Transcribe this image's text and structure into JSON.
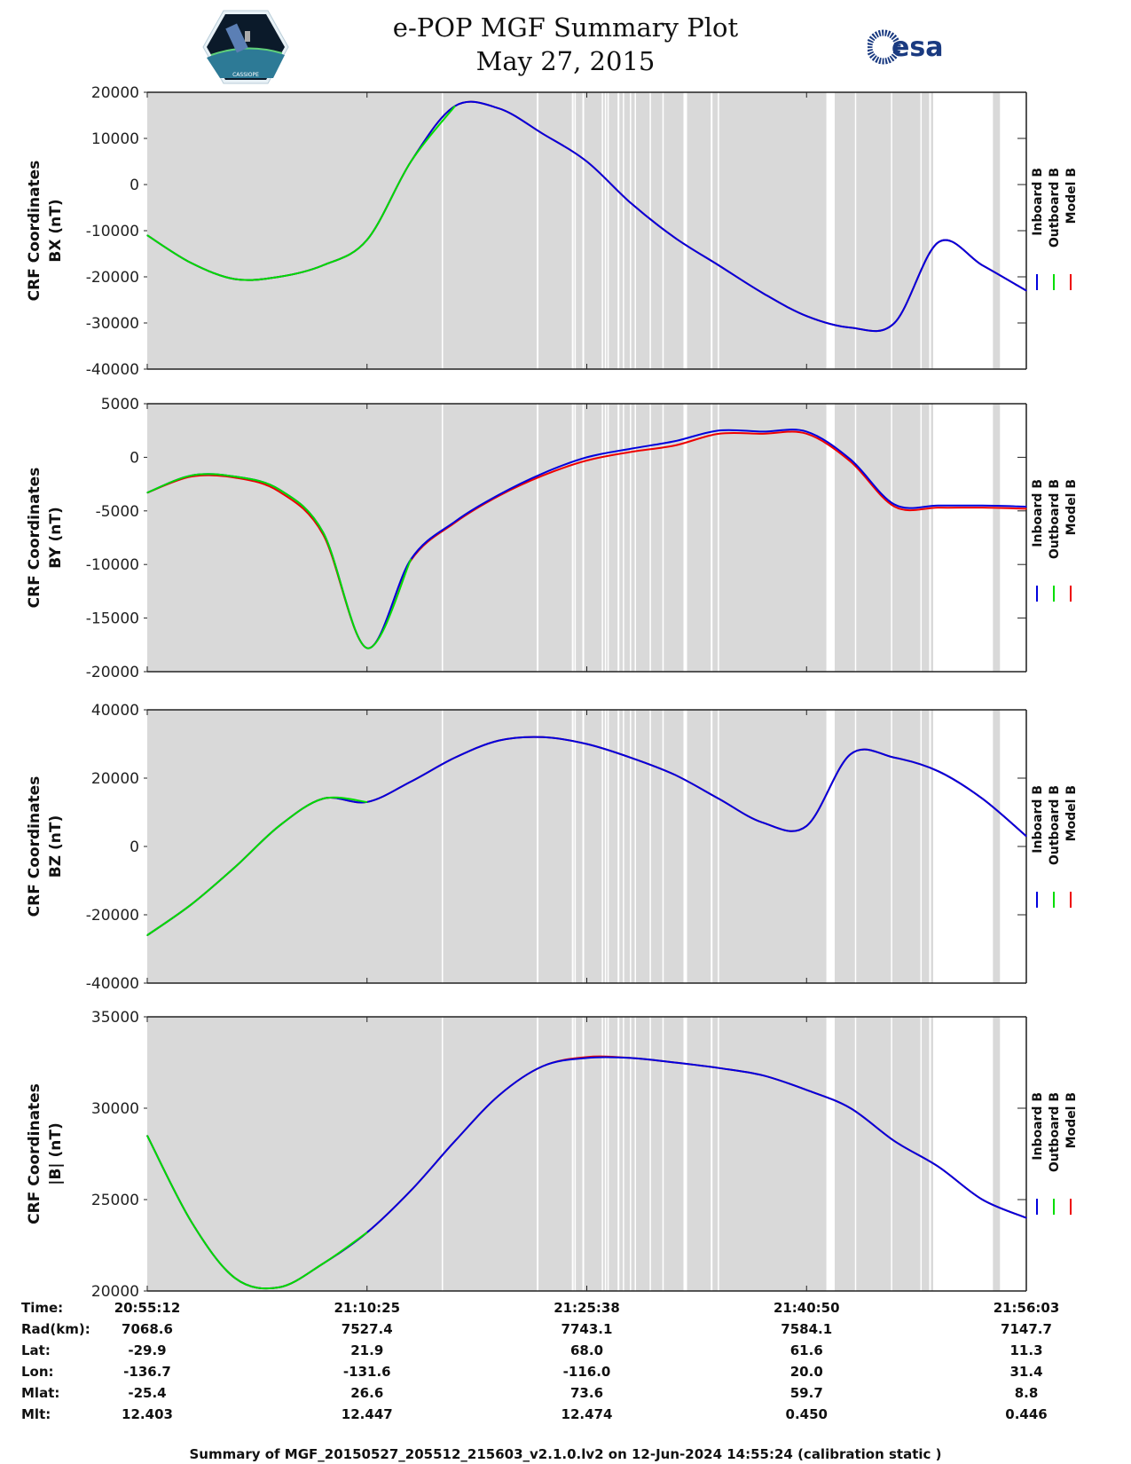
{
  "header": {
    "title_line1": "e-POP MGF Summary Plot",
    "title_line2": "May 27, 2015",
    "logo_left": "cassiope-mission-logo",
    "logo_right": "esa-logo",
    "logo_right_text": "esa"
  },
  "chart_data": [
    {
      "type": "line",
      "panel": "BX",
      "ylabel_line1": "CRF Coordinates",
      "ylabel_line2": "BX (nT)",
      "ylim": [
        -40000,
        20000
      ],
      "yticks": [
        20000,
        10000,
        0,
        -10000,
        -20000,
        -30000,
        -40000
      ],
      "x": [
        0,
        1,
        2,
        3,
        4,
        5,
        6,
        7,
        8,
        9,
        10,
        11,
        12,
        13,
        14,
        15,
        16,
        17,
        18,
        19,
        20
      ],
      "series": [
        {
          "name": "Inboard B",
          "color": "#0000dd",
          "values": [
            -11000,
            -17000,
            -20500,
            -20000,
            -17500,
            -12000,
            5000,
            17000,
            16500,
            11000,
            5000,
            -4000,
            -11500,
            -17500,
            -23500,
            -28500,
            -31000,
            -30000,
            -12500,
            -17500,
            -23000
          ]
        },
        {
          "name": "Outboard B",
          "color": "#00dd00",
          "values": [
            -11000,
            -17000,
            -20500,
            -20000,
            -17500,
            -12000,
            5000,
            17000,
            null,
            null,
            null,
            null,
            null,
            null,
            null,
            null,
            null,
            null,
            null,
            null,
            null
          ]
        },
        {
          "name": "Model B",
          "color": "#ee0000",
          "values": [
            -11000,
            -17000,
            -20500,
            -20000,
            -17500,
            -12000,
            5000,
            17000,
            16500,
            11000,
            5000,
            -4000,
            -11500,
            -17500,
            -23500,
            -28500,
            -31000,
            -30000,
            -12500,
            -17500,
            -23000
          ]
        }
      ]
    },
    {
      "type": "line",
      "panel": "BY",
      "ylabel_line1": "CRF Coordinates",
      "ylabel_line2": "BY (nT)",
      "ylim": [
        -20000,
        5000
      ],
      "yticks": [
        5000,
        0,
        -5000,
        -10000,
        -15000,
        -20000
      ],
      "x": [
        0,
        1,
        2,
        3,
        4,
        5,
        6,
        7,
        8,
        9,
        10,
        11,
        12,
        13,
        14,
        15,
        16,
        17,
        18,
        19,
        20
      ],
      "series": [
        {
          "name": "Inboard B",
          "color": "#0000dd",
          "values": [
            -3300,
            -1700,
            -1800,
            -3000,
            -7000,
            -17800,
            -9500,
            -6000,
            -3500,
            -1500,
            0,
            800,
            1500,
            2500,
            2400,
            2400,
            -200,
            -4400,
            -4500,
            -4500,
            -4600
          ]
        },
        {
          "name": "Outboard B",
          "color": "#00dd00",
          "values": [
            -3300,
            -1700,
            -1800,
            -3000,
            -7000,
            -17800,
            -9500,
            null,
            null,
            null,
            null,
            null,
            null,
            null,
            null,
            null,
            null,
            null,
            null,
            null,
            null
          ]
        },
        {
          "name": "Model B",
          "color": "#ee0000",
          "values": [
            -3300,
            -1800,
            -1900,
            -3200,
            -7200,
            -17800,
            -9600,
            -6100,
            -3600,
            -1700,
            -300,
            500,
            1100,
            2200,
            2200,
            2200,
            -400,
            -4600,
            -4700,
            -4700,
            -4800
          ]
        }
      ]
    },
    {
      "type": "line",
      "panel": "BZ",
      "ylabel_line1": "CRF Coordinates",
      "ylabel_line2": "BZ (nT)",
      "ylim": [
        -40000,
        40000
      ],
      "yticks": [
        40000,
        20000,
        0,
        -20000,
        -40000
      ],
      "x": [
        0,
        1,
        2,
        3,
        4,
        5,
        6,
        7,
        8,
        9,
        10,
        11,
        12,
        13,
        14,
        15,
        16,
        17,
        18,
        19,
        20
      ],
      "series": [
        {
          "name": "Inboard B",
          "color": "#0000dd",
          "values": [
            -26000,
            -17000,
            -6000,
            6000,
            14000,
            13000,
            19000,
            26000,
            31000,
            32000,
            30000,
            26000,
            21000,
            14000,
            7000,
            6000,
            27000,
            26000,
            22000,
            14000,
            3000
          ]
        },
        {
          "name": "Outboard B",
          "color": "#00dd00",
          "values": [
            -26000,
            -17000,
            -6000,
            6000,
            14000,
            13000,
            null,
            null,
            null,
            null,
            null,
            null,
            null,
            null,
            null,
            null,
            null,
            null,
            null,
            null,
            null
          ]
        },
        {
          "name": "Model B",
          "color": "#ee0000",
          "values": [
            -26000,
            -17000,
            -6000,
            6000,
            14000,
            13000,
            19000,
            26000,
            31000,
            32000,
            30000,
            26000,
            21000,
            14000,
            7000,
            6000,
            27000,
            26000,
            22000,
            14000,
            3000
          ]
        }
      ]
    },
    {
      "type": "line",
      "panel": "|B|",
      "ylabel_line1": "CRF Coordinates",
      "ylabel_line2": "|B| (nT)",
      "ylim": [
        20000,
        35000
      ],
      "yticks": [
        35000,
        30000,
        25000,
        20000
      ],
      "x": [
        0,
        1,
        2,
        3,
        4,
        5,
        6,
        7,
        8,
        9,
        10,
        11,
        12,
        13,
        14,
        15,
        16,
        17,
        18,
        19,
        20
      ],
      "series": [
        {
          "name": "Inboard B",
          "color": "#0000dd",
          "values": [
            28500,
            23800,
            20700,
            20200,
            21500,
            23200,
            25500,
            28200,
            30700,
            32300,
            32750,
            32750,
            32500,
            32200,
            31800,
            31000,
            30000,
            28200,
            26800,
            25000,
            24000
          ]
        },
        {
          "name": "Outboard B",
          "color": "#00dd00",
          "values": [
            28500,
            23800,
            20700,
            20200,
            21500,
            23200,
            null,
            null,
            null,
            null,
            null,
            null,
            null,
            null,
            null,
            null,
            null,
            null,
            null,
            null,
            null
          ]
        },
        {
          "name": "Model B",
          "color": "#ee0000",
          "values": [
            28500,
            23800,
            20700,
            20200,
            21500,
            23200,
            25500,
            28200,
            30700,
            32300,
            32800,
            32750,
            32500,
            32200,
            31800,
            31000,
            30000,
            28200,
            26800,
            25000,
            24000
          ]
        }
      ]
    }
  ],
  "x_axis": {
    "tick_labels": [
      "20:55:12",
      "21:10:25",
      "21:25:38",
      "21:40:50",
      "21:56:03"
    ],
    "span_units": 20,
    "data_gap_intervals": [
      [
        6.7,
        6.72
      ],
      [
        8.86,
        8.9
      ],
      [
        9.66,
        9.7
      ],
      [
        9.72,
        9.74
      ],
      [
        9.9,
        9.94
      ],
      [
        10.34,
        10.37
      ],
      [
        10.41,
        10.44
      ],
      [
        10.47,
        10.49
      ],
      [
        10.7,
        10.74
      ],
      [
        10.82,
        10.84
      ],
      [
        10.98,
        11.0
      ],
      [
        11.09,
        11.12
      ],
      [
        11.43,
        11.45
      ],
      [
        11.72,
        11.74
      ],
      [
        12.2,
        12.28
      ],
      [
        12.82,
        12.86
      ],
      [
        12.98,
        13.0
      ],
      [
        15.45,
        15.64
      ],
      [
        16.1,
        16.12
      ],
      [
        16.92,
        16.95
      ],
      [
        17.59,
        17.62
      ],
      [
        17.79,
        17.83
      ],
      [
        17.88,
        19.24
      ],
      [
        19.4,
        19.98
      ]
    ]
  },
  "legend": [
    "Inboard B",
    "Outboard B",
    "Model B"
  ],
  "ephemeris": {
    "row_labels": [
      "Time:",
      "Rad(km):",
      "Lat:",
      "Lon:",
      "Mlat:",
      "Mlt:"
    ],
    "columns": [
      [
        "20:55:12",
        "7068.6",
        "-29.9",
        "-136.7",
        "-25.4",
        "12.403"
      ],
      [
        "21:10:25",
        "7527.4",
        "21.9",
        "-131.6",
        "26.6",
        "12.447"
      ],
      [
        "21:25:38",
        "7743.1",
        "68.0",
        "-116.0",
        "73.6",
        "12.474"
      ],
      [
        "21:40:50",
        "7584.1",
        "61.6",
        "20.0",
        "59.7",
        "0.450"
      ],
      [
        "21:56:03",
        "7147.7",
        "11.3",
        "31.4",
        "8.8",
        "0.446"
      ]
    ]
  },
  "footer": "Summary of MGF_20150527_205512_215603_v2.1.0.lv2 on 12-Jun-2024 14:55:24 (calibration static )"
}
